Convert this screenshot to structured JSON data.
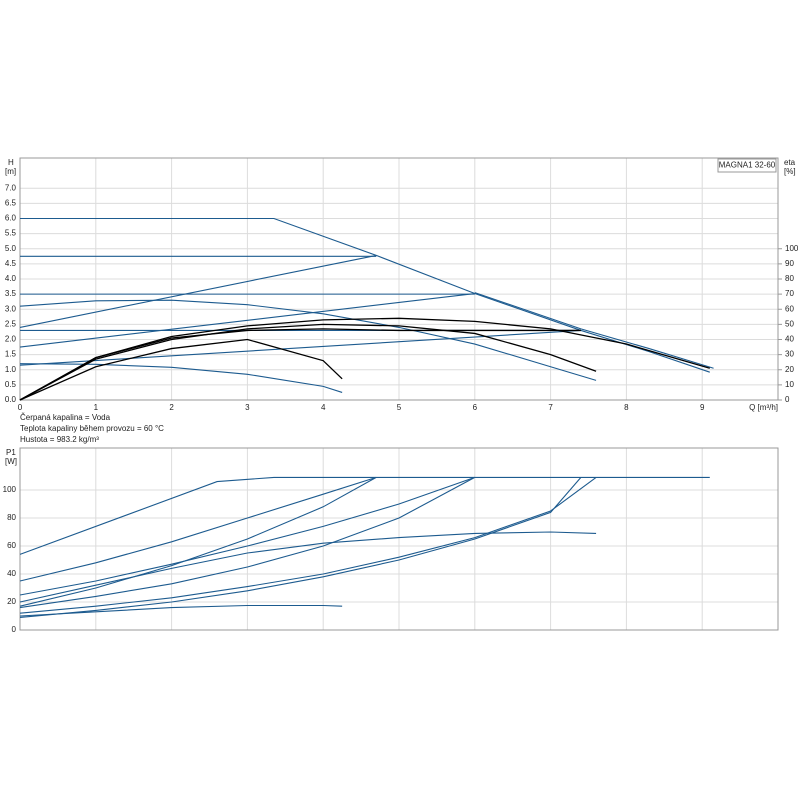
{
  "chart_data": [
    {
      "type": "line",
      "title": "MAGNA1 32-60",
      "ylabel": "H",
      "yunit": "[m]",
      "y2label": "eta",
      "y2unit": "[%]",
      "xlabel": "Q [m³/h]",
      "annotations": [
        "Čerpaná kapalina = Voda",
        "Teplota kapaliny během provozu = 60 °C",
        "Hustota = 983.2 kg/m³"
      ],
      "xlim": [
        0,
        10
      ],
      "xticks": [
        0,
        1,
        2,
        3,
        4,
        5,
        6,
        7,
        8,
        9
      ],
      "ylim": [
        0,
        8
      ],
      "yticks": [
        {
          "value": 0,
          "label": "0.0"
        },
        {
          "value": 0.5,
          "label": "0.5"
        },
        {
          "value": 1,
          "label": "1.0"
        },
        {
          "value": 1.5,
          "label": "1.5"
        },
        {
          "value": 2,
          "label": "2.0"
        },
        {
          "value": 2.5,
          "label": "2.5"
        },
        {
          "value": 3,
          "label": "3.0"
        },
        {
          "value": 3.5,
          "label": "3.5"
        },
        {
          "value": 4,
          "label": "4.0"
        },
        {
          "value": 4.5,
          "label": "4.5"
        },
        {
          "value": 5,
          "label": "5.0"
        },
        {
          "value": 5.5,
          "label": "5.5"
        },
        {
          "value": 6,
          "label": "6.0"
        },
        {
          "value": 6.5,
          "label": "6.5"
        },
        {
          "value": 7,
          "label": "7.0"
        }
      ],
      "y2lim": [
        0,
        160
      ],
      "y2ticks": [
        0,
        10,
        20,
        30,
        40,
        50,
        60,
        70,
        80,
        90,
        100
      ],
      "grid": true,
      "series": [
        {
          "color": "#1d5b8f",
          "x": [
            0,
            3.35,
            4.7,
            6.0,
            7.4,
            8.3,
            9.1
          ],
          "values": [
            6.0,
            6.0,
            4.78,
            3.52,
            2.3,
            1.6,
            0.92
          ]
        },
        {
          "color": "#1d5b8f",
          "x": [
            6.0,
            7.4,
            8.3,
            9.15
          ],
          "values": [
            3.55,
            2.35,
            1.7,
            1.05
          ]
        },
        {
          "color": "#1d5b8f",
          "x": [
            0,
            4.7
          ],
          "values": [
            4.75,
            4.75
          ]
        },
        {
          "color": "#1d5b8f",
          "x": [
            0,
            6.0
          ],
          "values": [
            3.5,
            3.5
          ]
        },
        {
          "color": "#1d5b8f",
          "x": [
            0,
            7.4
          ],
          "values": [
            2.3,
            2.3
          ]
        },
        {
          "color": "#1d5b8f",
          "x": [
            0,
            4.7
          ],
          "values": [
            2.4,
            4.78
          ]
        },
        {
          "color": "#1d5b8f",
          "x": [
            0,
            6.0
          ],
          "values": [
            1.75,
            3.52
          ]
        },
        {
          "color": "#1d5b8f",
          "x": [
            0,
            7.4
          ],
          "values": [
            1.15,
            2.3
          ]
        },
        {
          "color": "#1d5b8f",
          "x": [
            0,
            1,
            2,
            3,
            4,
            5,
            6,
            7,
            7.6
          ],
          "values": [
            3.1,
            3.28,
            3.3,
            3.15,
            2.85,
            2.4,
            1.85,
            1.1,
            0.65
          ]
        },
        {
          "color": "#1d5b8f",
          "x": [
            0,
            1,
            2,
            3,
            4,
            4.25
          ],
          "values": [
            1.2,
            1.18,
            1.08,
            0.85,
            0.45,
            0.25
          ]
        },
        {
          "color": "#000000",
          "axis": "y2",
          "x": [
            0,
            1,
            2,
            3,
            4,
            4.25
          ],
          "values": [
            0,
            22,
            34,
            40,
            26,
            14
          ]
        },
        {
          "color": "#000000",
          "axis": "y2",
          "x": [
            0,
            1,
            2,
            3,
            4,
            5,
            6,
            7,
            7.6
          ],
          "values": [
            0,
            27,
            40,
            47,
            50,
            49,
            44,
            30,
            19
          ]
        },
        {
          "color": "#000000",
          "axis": "y2",
          "x": [
            0,
            1,
            2,
            3,
            4,
            5,
            6,
            7,
            8,
            9.1
          ],
          "values": [
            0,
            28,
            42,
            49,
            53,
            54,
            52,
            47,
            37,
            21
          ]
        },
        {
          "color": "#000000",
          "axis": "y2",
          "x": [
            0,
            1,
            2,
            3,
            4,
            5,
            6,
            7,
            7.4
          ],
          "values": [
            0,
            28,
            41,
            46,
            47,
            46,
            46,
            46,
            46
          ]
        }
      ]
    },
    {
      "type": "line",
      "ylabel": "P1",
      "yunit": "[W]",
      "xlim": [
        0,
        10
      ],
      "ylim": [
        0,
        130
      ],
      "yticks": [
        0,
        20,
        40,
        60,
        80,
        100
      ],
      "grid": true,
      "series": [
        {
          "color": "#1d5b8f",
          "x": [
            0,
            2.6,
            3.35,
            9.1
          ],
          "values": [
            54,
            106,
            109,
            109
          ]
        },
        {
          "color": "#1d5b8f",
          "x": [
            0,
            1,
            2,
            3,
            4,
            4.7
          ],
          "values": [
            35,
            48,
            63,
            80,
            97,
            109
          ]
        },
        {
          "color": "#1d5b8f",
          "x": [
            0,
            1,
            2,
            3,
            4,
            4.7
          ],
          "values": [
            17,
            30,
            46,
            65,
            88,
            109
          ]
        },
        {
          "color": "#1d5b8f",
          "x": [
            0,
            1,
            2,
            3,
            4,
            5,
            6.0
          ],
          "values": [
            25,
            35,
            47,
            60,
            74,
            90,
            109
          ]
        },
        {
          "color": "#1d5b8f",
          "x": [
            0,
            1,
            2,
            3,
            4,
            5,
            6
          ],
          "values": [
            16,
            24,
            33,
            45,
            60,
            80,
            109
          ]
        },
        {
          "color": "#1d5b8f",
          "x": [
            0,
            1,
            2,
            3,
            4,
            5,
            6,
            7,
            7.6
          ],
          "values": [
            20,
            32,
            44,
            55,
            62,
            66,
            69,
            70,
            69
          ]
        },
        {
          "color": "#1d5b8f",
          "x": [
            0,
            1,
            2,
            3,
            4,
            5,
            6,
            7,
            7.6
          ],
          "values": [
            12,
            17,
            23,
            31,
            40,
            52,
            66,
            85,
            109
          ]
        },
        {
          "color": "#1d5b8f",
          "x": [
            0,
            1,
            2,
            3,
            4,
            5,
            6,
            7,
            7.4
          ],
          "values": [
            9,
            14,
            20,
            28,
            38,
            50,
            65,
            84,
            109
          ]
        },
        {
          "color": "#1d5b8f",
          "x": [
            0,
            1,
            2,
            3,
            4,
            4.25
          ],
          "values": [
            10,
            13,
            16,
            17.5,
            17.5,
            17
          ]
        }
      ]
    }
  ]
}
